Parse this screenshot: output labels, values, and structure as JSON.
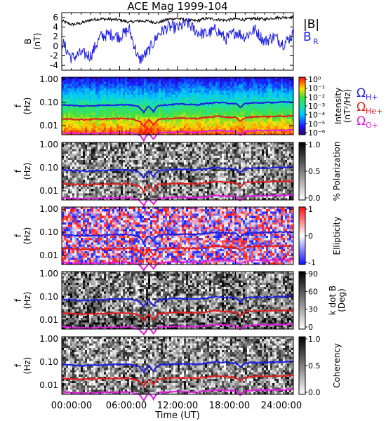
{
  "title": "ACE Mag 1999-104",
  "x_axis": {
    "label": "Time (UT)",
    "ticks": [
      "00:00:00",
      "06:00:00",
      "12:00:00",
      "18:00:00",
      "24:00:00"
    ],
    "range_hours": [
      0,
      24
    ]
  },
  "freq_ticks": [
    "1.00",
    "0.10",
    "0.01"
  ],
  "freq_label": "f",
  "freq_unit": "(Hz)",
  "gyro_legend": [
    {
      "symbol": "Ω",
      "sub": "H+",
      "color": "#1f1fe0"
    },
    {
      "symbol": "Ω",
      "sub": "He+",
      "color": "#e01f1f"
    },
    {
      "symbol": "Ω",
      "sub": "O+",
      "color": "#e01fe0"
    }
  ],
  "chart_data": [
    {
      "panel": "magnetic-field",
      "type": "line",
      "ylabel_top": "B",
      "ylabel_unit": "(nT)",
      "ylim": [
        -5,
        7
      ],
      "yticks": [
        "6",
        "4",
        "2",
        "0",
        "-2",
        "-4"
      ],
      "x_hours": [
        0,
        1,
        2,
        3,
        4,
        5,
        6,
        7,
        8,
        9,
        10,
        11,
        12,
        13,
        14,
        15,
        16,
        17,
        18,
        19,
        20,
        21,
        22,
        23,
        24
      ],
      "series": [
        {
          "name": "|B|",
          "color": "#000000",
          "values": [
            5.3,
            4.5,
            4.8,
            5.5,
            5.7,
            5.6,
            5.5,
            5.0,
            5.3,
            5.2,
            4.9,
            5.6,
            5.8,
            5.4,
            5.3,
            5.8,
            5.6,
            5.4,
            5.7,
            5.5,
            5.8,
            5.6,
            5.9,
            6.0,
            6.1
          ]
        },
        {
          "name": "B_R",
          "legend": "B",
          "legend_sub": "R",
          "color": "#1f1fe0",
          "values": [
            1.0,
            -2.5,
            -1.5,
            -2.0,
            2.0,
            2.5,
            2.0,
            3.5,
            -3.0,
            -1.0,
            2.5,
            4.0,
            3.8,
            4.8,
            3.0,
            2.5,
            3.5,
            1.5,
            3.0,
            2.0,
            3.5,
            1.0,
            2.0,
            0.5,
            2.5
          ]
        }
      ]
    },
    {
      "panel": "power-intensity",
      "type": "heatmap",
      "colorbar_label": "Intensity",
      "colorbar_unit": "(nT²/Hz)",
      "colorbar_ticks": [
        "10⁰",
        "10⁻¹",
        "10⁻²",
        "10⁻³",
        "10⁻⁴",
        "10⁻⁵",
        "10⁻⁶"
      ]
    },
    {
      "panel": "polarization",
      "type": "heatmap",
      "colorbar_label": "% Polarization",
      "colorbar_ticks": [
        "1.0",
        "0.5",
        "0.0"
      ]
    },
    {
      "panel": "ellipticity",
      "type": "heatmap",
      "colorbar_label": "Ellipticity",
      "colorbar_ticks": [
        "1",
        "0",
        "-1"
      ]
    },
    {
      "panel": "wave-normal-angle",
      "type": "heatmap",
      "colorbar_label": "k dot B",
      "colorbar_unit": "(Deg)",
      "colorbar_ticks": [
        "90",
        "60",
        "30",
        "0"
      ]
    },
    {
      "panel": "coherency",
      "type": "heatmap",
      "colorbar_label": "Coherency",
      "colorbar_ticks": [
        "1.0",
        "0.5",
        "0.0"
      ]
    }
  ],
  "gyro_frequencies_hz": {
    "x_hours": [
      0,
      2,
      4,
      6,
      7,
      8,
      8.5,
      9,
      9.5,
      10,
      12,
      14,
      16,
      18,
      18.5,
      19,
      20,
      22,
      24
    ],
    "H+": [
      0.08,
      0.07,
      0.075,
      0.08,
      0.08,
      0.065,
      0.035,
      0.07,
      0.04,
      0.075,
      0.085,
      0.08,
      0.1,
      0.09,
      0.06,
      0.09,
      0.095,
      0.1,
      0.105
    ],
    "He+": [
      0.02,
      0.018,
      0.019,
      0.02,
      0.02,
      0.016,
      0.009,
      0.018,
      0.01,
      0.019,
      0.021,
      0.02,
      0.025,
      0.022,
      0.015,
      0.022,
      0.024,
      0.025,
      0.026
    ],
    "O+": [
      0.005,
      0.0045,
      0.0047,
      0.005,
      0.005,
      0.004,
      0.0022,
      0.0045,
      0.0025,
      0.0047,
      0.0053,
      0.005,
      0.0062,
      0.0056,
      0.0038,
      0.0056,
      0.006,
      0.0062,
      0.0065
    ]
  }
}
